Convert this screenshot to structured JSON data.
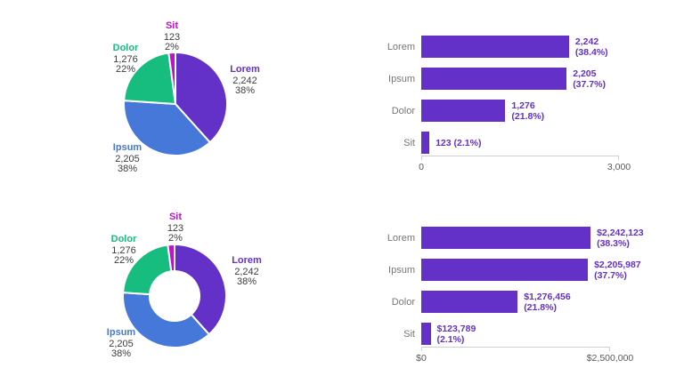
{
  "palette": {
    "lorem_purple": "#6431c8",
    "ipsum_blue": "#4678da",
    "dolor_green": "#17bd7e",
    "sit_magenta": "#c013c8",
    "bar_purple": "#6431c8",
    "category_gray": "#757575",
    "value_dark": "#3d3d3d",
    "axis_gray": "#cfcfcf"
  },
  "chart_data": [
    {
      "type": "pie",
      "donut": false,
      "categories": [
        "Lorem",
        "Ipsum",
        "Dolor",
        "Sit"
      ],
      "values": [
        2242,
        2205,
        1276,
        123
      ],
      "value_labels": [
        "2,242",
        "2,205",
        "1,276",
        "123"
      ],
      "percent_labels": [
        "38%",
        "38%",
        "22%",
        "2%"
      ],
      "colors": [
        "#6431c8",
        "#4678da",
        "#17bd7e",
        "#c013c8"
      ],
      "title": "",
      "legend": "none"
    },
    {
      "type": "bar",
      "orientation": "horizontal",
      "categories": [
        "Lorem",
        "Ipsum",
        "Dolor",
        "Sit"
      ],
      "values": [
        2242,
        2205,
        1276,
        123
      ],
      "bar_labels": [
        [
          "2,242",
          "(38.4%)"
        ],
        [
          "2,205",
          "(37.7%)"
        ],
        [
          "1,276",
          "(21.8%)"
        ],
        [
          "123 (2.1%)"
        ]
      ],
      "xlim": [
        0,
        3000
      ],
      "tick_labels": [
        "0",
        "3,000"
      ],
      "bar_color": "#6431c8",
      "label_color": "#6431c8",
      "grid": "off",
      "title": ""
    },
    {
      "type": "pie",
      "donut": true,
      "categories": [
        "Lorem",
        "Ipsum",
        "Dolor",
        "Sit"
      ],
      "values": [
        2242,
        2205,
        1276,
        123
      ],
      "value_labels": [
        "2,242",
        "2,205",
        "1,276",
        "123"
      ],
      "percent_labels": [
        "38%",
        "38%",
        "22%",
        "2%"
      ],
      "colors": [
        "#6431c8",
        "#4678da",
        "#17bd7e",
        "#c013c8"
      ],
      "title": "",
      "legend": "none"
    },
    {
      "type": "bar",
      "orientation": "horizontal",
      "categories": [
        "Lorem",
        "Ipsum",
        "Dolor",
        "Sit"
      ],
      "values": [
        2242123,
        2205987,
        1276456,
        123789
      ],
      "bar_labels": [
        [
          "$2,242,123",
          "(38.3%)"
        ],
        [
          "$2,205,987",
          "(37.7%)"
        ],
        [
          "$1,276,456",
          "(21.8%)"
        ],
        [
          "$123,789",
          "(2.1%)"
        ]
      ],
      "xlim": [
        0,
        2500000
      ],
      "tick_labels": [
        "$0",
        "$2,500,000"
      ],
      "bar_color": "#6431c8",
      "label_color": "#6431c8",
      "grid": "off",
      "title": ""
    }
  ]
}
